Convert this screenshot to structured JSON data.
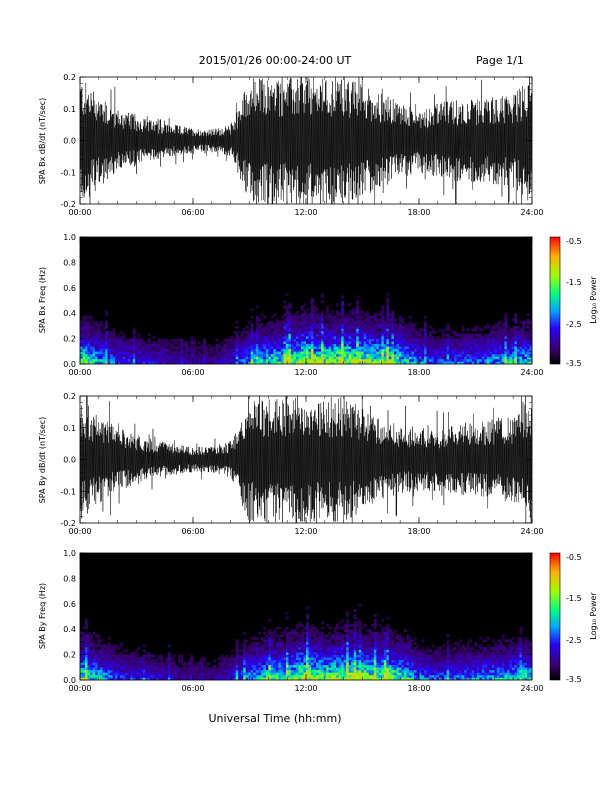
{
  "header": {
    "title": "2015/01/26  00:00-24:00 UT",
    "page": "Page 1/1"
  },
  "xlabel": "Universal Time (hh:mm)",
  "colorbar": {
    "label": "Log₁₀ Power",
    "ticks": [
      "-0.5",
      "-1.5",
      "-2.5",
      "-3.5"
    ],
    "range": [
      -3.5,
      -0.5
    ]
  },
  "chart_data": [
    {
      "type": "line",
      "ylabel": "SPA Bx dB/dt (nT/sec)",
      "xlim": [
        0,
        24
      ],
      "ylim": [
        -0.2,
        0.2
      ],
      "x_ticks": [
        "00:00",
        "06:00",
        "12:00",
        "18:00",
        "24:00"
      ],
      "y_ticks": [
        "0.2",
        "0.1",
        "0.0",
        "-0.1",
        "-0.2"
      ],
      "envelope": {
        "hours": [
          0,
          1,
          2,
          3,
          4,
          5,
          6,
          7,
          8,
          9,
          10,
          11,
          12,
          13,
          14,
          15,
          16,
          17,
          18,
          19,
          20,
          21,
          22,
          23,
          24
        ],
        "amplitude": [
          0.2,
          0.15,
          0.1,
          0.08,
          0.06,
          0.05,
          0.04,
          0.035,
          0.05,
          0.2,
          0.2,
          0.2,
          0.2,
          0.2,
          0.2,
          0.18,
          0.15,
          0.12,
          0.1,
          0.12,
          0.13,
          0.13,
          0.14,
          0.15,
          0.2
        ]
      }
    },
    {
      "type": "heatmap",
      "ylabel": "SPA Bx Freq (Hz)",
      "xlim": [
        0,
        24
      ],
      "ylim": [
        0,
        1.0
      ],
      "x_ticks": [
        "00:00",
        "06:00",
        "12:00",
        "18:00",
        "24:00"
      ],
      "y_ticks": [
        "1.0",
        "0.8",
        "0.6",
        "0.4",
        "0.2",
        "0.0"
      ],
      "activity": {
        "hours": [
          0,
          1,
          2,
          3,
          4,
          5,
          6,
          7,
          8,
          9,
          10,
          11,
          12,
          13,
          14,
          15,
          16,
          17,
          18,
          19,
          20,
          21,
          22,
          23,
          24
        ],
        "level": [
          0.85,
          0.6,
          0.4,
          0.35,
          0.3,
          0.25,
          0.2,
          0.2,
          0.3,
          0.55,
          0.7,
          0.75,
          1.0,
          0.85,
          0.95,
          0.9,
          0.85,
          0.75,
          0.5,
          0.4,
          0.45,
          0.5,
          0.55,
          0.6,
          0.7
        ]
      }
    },
    {
      "type": "line",
      "ylabel": "SPA By dB/dt (nT/sec)",
      "xlim": [
        0,
        24
      ],
      "ylim": [
        -0.2,
        0.2
      ],
      "x_ticks": [
        "00:00",
        "06:00",
        "12:00",
        "18:00",
        "24:00"
      ],
      "y_ticks": [
        "0.2",
        "0.1",
        "0.0",
        "-0.1",
        "-0.2"
      ],
      "envelope": {
        "hours": [
          0,
          1,
          2,
          3,
          4,
          5,
          6,
          7,
          8,
          9,
          10,
          11,
          12,
          13,
          14,
          15,
          16,
          17,
          18,
          19,
          20,
          21,
          22,
          23,
          24
        ],
        "amplitude": [
          0.2,
          0.14,
          0.1,
          0.08,
          0.06,
          0.05,
          0.04,
          0.04,
          0.06,
          0.2,
          0.2,
          0.2,
          0.2,
          0.2,
          0.2,
          0.16,
          0.13,
          0.11,
          0.1,
          0.1,
          0.11,
          0.12,
          0.13,
          0.14,
          0.2
        ]
      }
    },
    {
      "type": "heatmap",
      "ylabel": "SPA By Freq (Hz)",
      "xlim": [
        0,
        24
      ],
      "ylim": [
        0,
        1.0
      ],
      "x_ticks": [
        "00:00",
        "06:00",
        "12:00",
        "18:00",
        "24:00"
      ],
      "y_ticks": [
        "1.0",
        "0.8",
        "0.6",
        "0.4",
        "0.2",
        "0.0"
      ],
      "activity": {
        "hours": [
          0,
          1,
          2,
          3,
          4,
          5,
          6,
          7,
          8,
          9,
          10,
          11,
          12,
          13,
          14,
          15,
          16,
          17,
          18,
          19,
          20,
          21,
          22,
          23,
          24
        ],
        "level": [
          0.85,
          0.6,
          0.4,
          0.35,
          0.3,
          0.25,
          0.2,
          0.2,
          0.3,
          0.55,
          0.7,
          0.75,
          1.0,
          0.85,
          0.95,
          0.9,
          0.85,
          0.75,
          0.5,
          0.4,
          0.45,
          0.5,
          0.55,
          0.6,
          0.7
        ]
      }
    }
  ]
}
